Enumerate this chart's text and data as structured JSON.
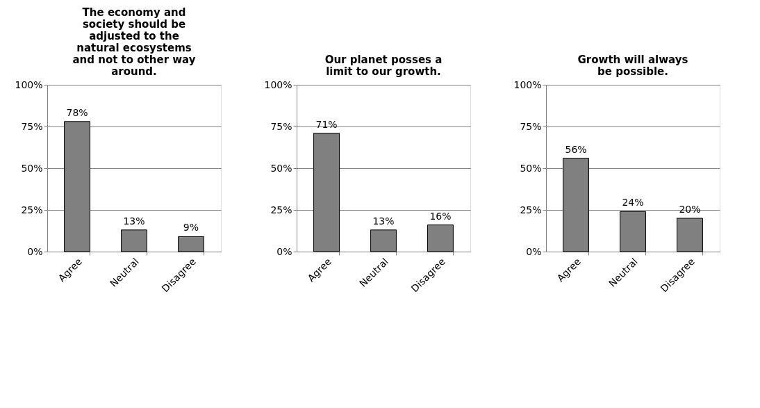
{
  "chart_data": [
    {
      "type": "bar",
      "title": "The economy and society should be adjusted to the natural ecosystems and not to other way around.",
      "categories": [
        "Agree",
        "Neutral",
        "Disagree"
      ],
      "values": [
        78,
        13,
        9
      ],
      "value_labels": [
        "78%",
        "13%",
        "9%"
      ],
      "color": "#808080",
      "ylim": [
        0,
        100
      ],
      "yticks": [
        {
          "value": 0,
          "label": "0%"
        },
        {
          "value": 25,
          "label": "25%"
        },
        {
          "value": 50,
          "label": "50%"
        },
        {
          "value": 75,
          "label": "75%"
        },
        {
          "value": 100,
          "label": "100%"
        }
      ],
      "grid": "y"
    },
    {
      "type": "bar",
      "title": "Our planet posses a limit to our growth.",
      "categories": [
        "Agree",
        "Neutral",
        "Disagree"
      ],
      "values": [
        71,
        13,
        16
      ],
      "value_labels": [
        "71%",
        "13%",
        "16%"
      ],
      "color": "#808080",
      "ylim": [
        0,
        100
      ],
      "yticks": [
        {
          "value": 0,
          "label": "0%"
        },
        {
          "value": 25,
          "label": "25%"
        },
        {
          "value": 50,
          "label": "50%"
        },
        {
          "value": 75,
          "label": "75%"
        },
        {
          "value": 100,
          "label": "100%"
        }
      ],
      "grid": "y"
    },
    {
      "type": "bar",
      "title": "Growth will always be possible.",
      "categories": [
        "Agree",
        "Neutral",
        "Disagree"
      ],
      "values": [
        56,
        24,
        20
      ],
      "value_labels": [
        "56%",
        "24%",
        "20%"
      ],
      "color": "#808080",
      "ylim": [
        0,
        100
      ],
      "yticks": [
        {
          "value": 0,
          "label": "0%"
        },
        {
          "value": 25,
          "label": "25%"
        },
        {
          "value": 50,
          "label": "50%"
        },
        {
          "value": 75,
          "label": "75%"
        },
        {
          "value": 100,
          "label": "100%"
        }
      ],
      "grid": "y"
    }
  ]
}
